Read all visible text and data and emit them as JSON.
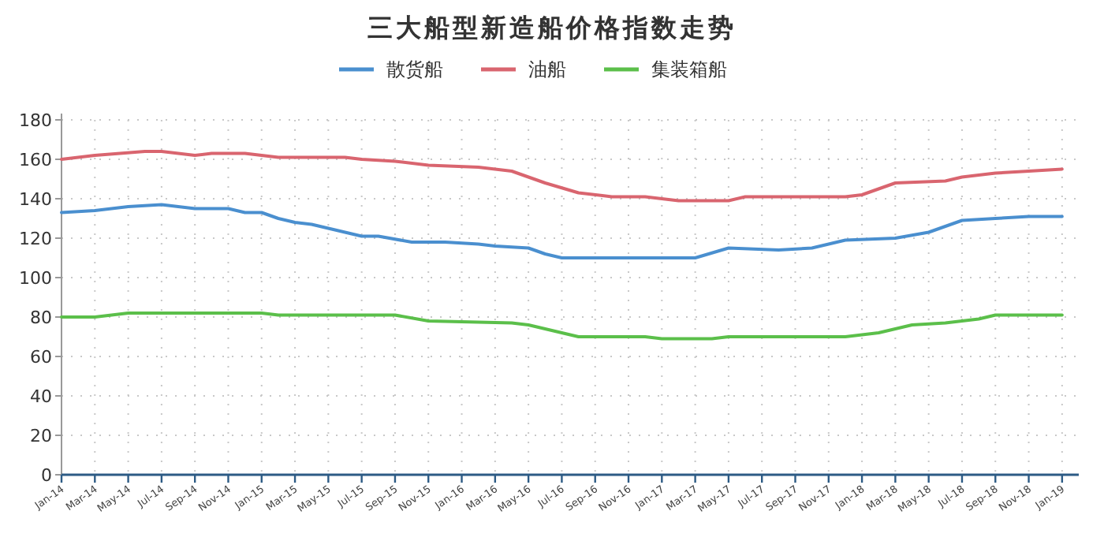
{
  "chart_data": {
    "type": "line",
    "title": "三大船型新造船价格指数走势",
    "legend": "top",
    "grid": true,
    "xlim": [
      "2014-01",
      "2019-02"
    ],
    "ylim": [
      0,
      180
    ],
    "yticks": [
      0,
      20,
      40,
      60,
      80,
      100,
      120,
      140,
      160,
      180
    ],
    "xticks": [
      {
        "value": "2014-01",
        "label": "Jan-14"
      },
      {
        "value": "2014-03",
        "label": "Mar-14"
      },
      {
        "value": "2014-05",
        "label": "May-14"
      },
      {
        "value": "2014-07",
        "label": "Jul-14"
      },
      {
        "value": "2014-09",
        "label": "Sep-14"
      },
      {
        "value": "2014-11",
        "label": "Nov-14"
      },
      {
        "value": "2015-01",
        "label": "Jan-15"
      },
      {
        "value": "2015-03",
        "label": "Mar-15"
      },
      {
        "value": "2015-05",
        "label": "May-15"
      },
      {
        "value": "2015-07",
        "label": "Jul-15"
      },
      {
        "value": "2015-09",
        "label": "Sep-15"
      },
      {
        "value": "2015-11",
        "label": "Nov-15"
      },
      {
        "value": "2016-01",
        "label": "Jan-16"
      },
      {
        "value": "2016-03",
        "label": "Mar-16"
      },
      {
        "value": "2016-05",
        "label": "May-16"
      },
      {
        "value": "2016-07",
        "label": "Jul-16"
      },
      {
        "value": "2016-09",
        "label": "Sep-16"
      },
      {
        "value": "2016-11",
        "label": "Nov-16"
      },
      {
        "value": "2017-01",
        "label": "Jan-17"
      },
      {
        "value": "2017-03",
        "label": "Mar-17"
      },
      {
        "value": "2017-05",
        "label": "May-17"
      },
      {
        "value": "2017-07",
        "label": "Jul-17"
      },
      {
        "value": "2017-09",
        "label": "Sep-17"
      },
      {
        "value": "2017-11",
        "label": "Nov-17"
      },
      {
        "value": "2018-01",
        "label": "Jan-18"
      },
      {
        "value": "2018-03",
        "label": "Mar-18"
      },
      {
        "value": "2018-05",
        "label": "May-18"
      },
      {
        "value": "2018-07",
        "label": "Jul-18"
      },
      {
        "value": "2018-09",
        "label": "Sep-18"
      },
      {
        "value": "2018-11",
        "label": "Nov-18"
      },
      {
        "value": "2019-01",
        "label": "Jan-19"
      }
    ],
    "series": [
      {
        "name": "散货船",
        "color": "#4a8fcf",
        "x": [
          "2014-01",
          "2014-03",
          "2014-05",
          "2014-07",
          "2014-09",
          "2014-11",
          "2014-12",
          "2015-01",
          "2015-02",
          "2015-03",
          "2015-04",
          "2015-06",
          "2015-07",
          "2015-08",
          "2015-10",
          "2015-12",
          "2016-02",
          "2016-03",
          "2016-05",
          "2016-06",
          "2016-07",
          "2017-03",
          "2017-05",
          "2017-08",
          "2017-10",
          "2017-12",
          "2018-03",
          "2018-05",
          "2018-07",
          "2018-09",
          "2018-11",
          "2019-01"
        ],
        "values": [
          133,
          134,
          136,
          137,
          135,
          135,
          133,
          133,
          130,
          128,
          127,
          123,
          121,
          121,
          118,
          118,
          117,
          116,
          115,
          112,
          110,
          110,
          115,
          114,
          115,
          119,
          120,
          123,
          129,
          130,
          131,
          131
        ]
      },
      {
        "name": "油船",
        "color": "#d9656f",
        "x": [
          "2014-01",
          "2014-03",
          "2014-06",
          "2014-07",
          "2014-09",
          "2014-10",
          "2014-12",
          "2015-02",
          "2015-06",
          "2015-07",
          "2015-09",
          "2015-11",
          "2016-02",
          "2016-04",
          "2016-05",
          "2016-06",
          "2016-08",
          "2016-10",
          "2016-12",
          "2017-02",
          "2017-05",
          "2017-06",
          "2017-12",
          "2018-01",
          "2018-02",
          "2018-03",
          "2018-06",
          "2018-07",
          "2018-09",
          "2018-11",
          "2019-01"
        ],
        "values": [
          160,
          162,
          164,
          164,
          162,
          163,
          163,
          161,
          161,
          160,
          159,
          157,
          156,
          154,
          151,
          148,
          143,
          141,
          141,
          139,
          139,
          141,
          141,
          142,
          145,
          148,
          149,
          151,
          153,
          154,
          155
        ]
      },
      {
        "name": "集装箱船",
        "color": "#5bbf4a",
        "x": [
          "2014-01",
          "2014-03",
          "2014-05",
          "2015-01",
          "2015-02",
          "2015-09",
          "2015-11",
          "2016-04",
          "2016-05",
          "2016-06",
          "2016-07",
          "2016-08",
          "2016-12",
          "2017-01",
          "2017-04",
          "2017-05",
          "2017-12",
          "2018-02",
          "2018-04",
          "2018-06",
          "2018-08",
          "2018-09",
          "2019-01"
        ],
        "values": [
          80,
          80,
          82,
          82,
          81,
          81,
          78,
          77,
          76,
          74,
          72,
          70,
          70,
          69,
          69,
          70,
          70,
          72,
          76,
          77,
          79,
          81,
          81
        ]
      }
    ]
  }
}
